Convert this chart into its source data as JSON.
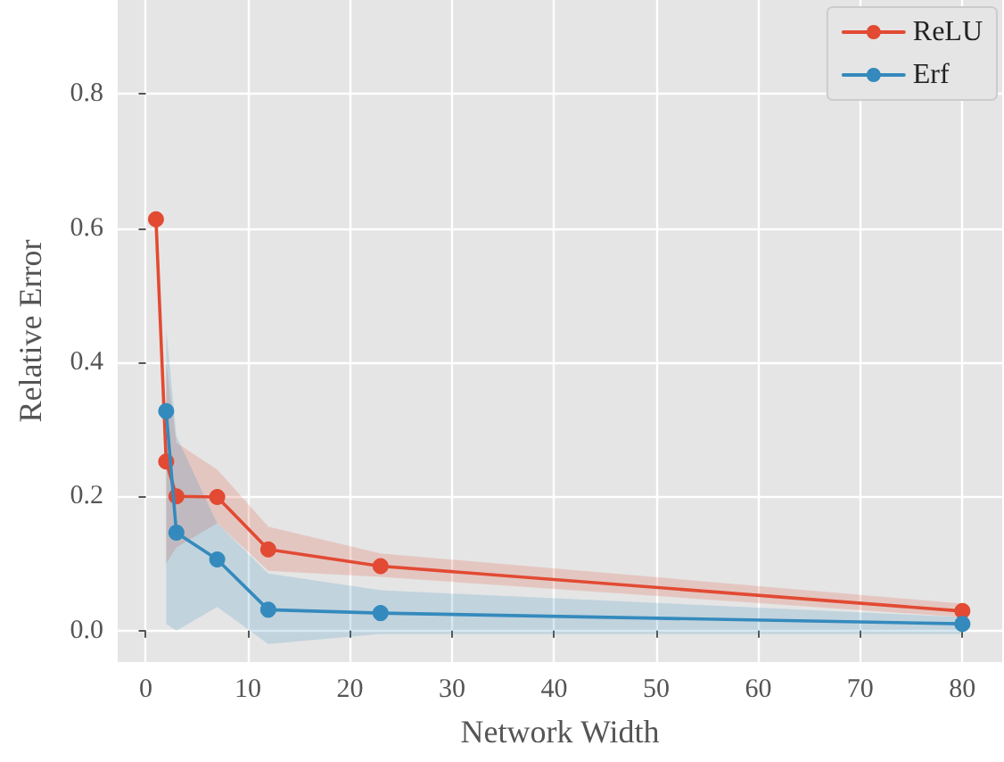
{
  "chart_data": {
    "type": "line",
    "xlabel": "Network Width",
    "ylabel": "Relative Error",
    "x": [
      1,
      2,
      3,
      7,
      12,
      23,
      80
    ],
    "series": [
      {
        "name": "ReLU",
        "color": "#e24a33",
        "values": [
          0.613,
          0.252,
          0.2,
          0.199,
          0.121,
          0.096,
          0.029
        ],
        "lower": [
          null,
          0.1,
          0.124,
          0.16,
          0.089,
          0.08,
          0.02
        ],
        "upper": [
          null,
          0.4,
          0.28,
          0.24,
          0.155,
          0.115,
          0.04
        ]
      },
      {
        "name": "Erf",
        "color": "#348abd",
        "values": [
          null,
          0.327,
          0.146,
          0.106,
          0.031,
          0.026,
          0.01
        ],
        "lower": [
          null,
          0.01,
          0.0,
          0.035,
          -0.02,
          -0.005,
          -0.005
        ],
        "upper": [
          null,
          0.45,
          0.29,
          0.16,
          0.085,
          0.06,
          0.02
        ]
      }
    ],
    "xlim": [
      -2.75,
      83.9
    ],
    "xticks": [
      0,
      10,
      20,
      30,
      40,
      50,
      60,
      70,
      80
    ],
    "ylim": [
      -0.047,
      0.94
    ],
    "yticks": [
      {
        "value": 0,
        "label": "0.0"
      },
      {
        "value": 0.2,
        "label": "0.2"
      },
      {
        "value": 0.4,
        "label": "0.4"
      },
      {
        "value": 0.6,
        "label": "0.6"
      },
      {
        "value": 0.8,
        "label": "0.8"
      }
    ],
    "grid": true,
    "legend": "top right",
    "marker": "circle",
    "line_style": "solid"
  }
}
